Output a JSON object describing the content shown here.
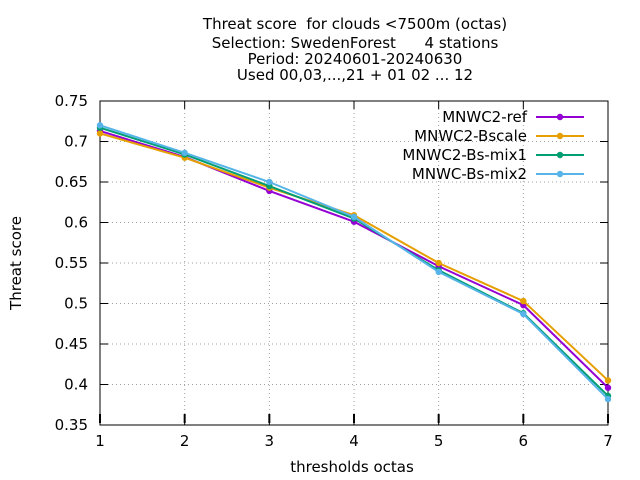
{
  "chart_data": {
    "type": "line",
    "title_lines": [
      "Threat score  for clouds <7500m (octas)",
      "Selection: SwedenForest      4 stations",
      "Period: 20240601-20240630",
      "Used 00,03,...,21 + 01 02 ... 12"
    ],
    "xlabel": "thresholds octas",
    "ylabel": "Threat score",
    "xlim": [
      1,
      7
    ],
    "ylim": [
      0.35,
      0.75
    ],
    "x_ticks": [
      "1",
      "2",
      "3",
      "4",
      "5",
      "6",
      "7"
    ],
    "y_ticks": [
      "0.35",
      "0.4",
      "0.45",
      "0.5",
      "0.55",
      "0.6",
      "0.65",
      "0.7",
      "0.75"
    ],
    "grid": true,
    "legend_position": "top-right",
    "x": [
      1,
      2,
      3,
      4,
      5,
      6,
      7
    ],
    "series": [
      {
        "name": "MNWC2-ref",
        "color": "#9400d3",
        "values": [
          0.713,
          0.681,
          0.639,
          0.601,
          0.546,
          0.498,
          0.396
        ]
      },
      {
        "name": "MNWC2-Bscale",
        "color": "#e69f00",
        "values": [
          0.71,
          0.68,
          0.643,
          0.609,
          0.55,
          0.503,
          0.405
        ]
      },
      {
        "name": "MNWC2-Bs-mix1",
        "color": "#009e73",
        "values": [
          0.717,
          0.684,
          0.645,
          0.605,
          0.541,
          0.488,
          0.386
        ]
      },
      {
        "name": "MNWC-Bs-mix2",
        "color": "#56b4e9",
        "values": [
          0.72,
          0.686,
          0.65,
          0.607,
          0.539,
          0.487,
          0.382
        ]
      }
    ]
  }
}
